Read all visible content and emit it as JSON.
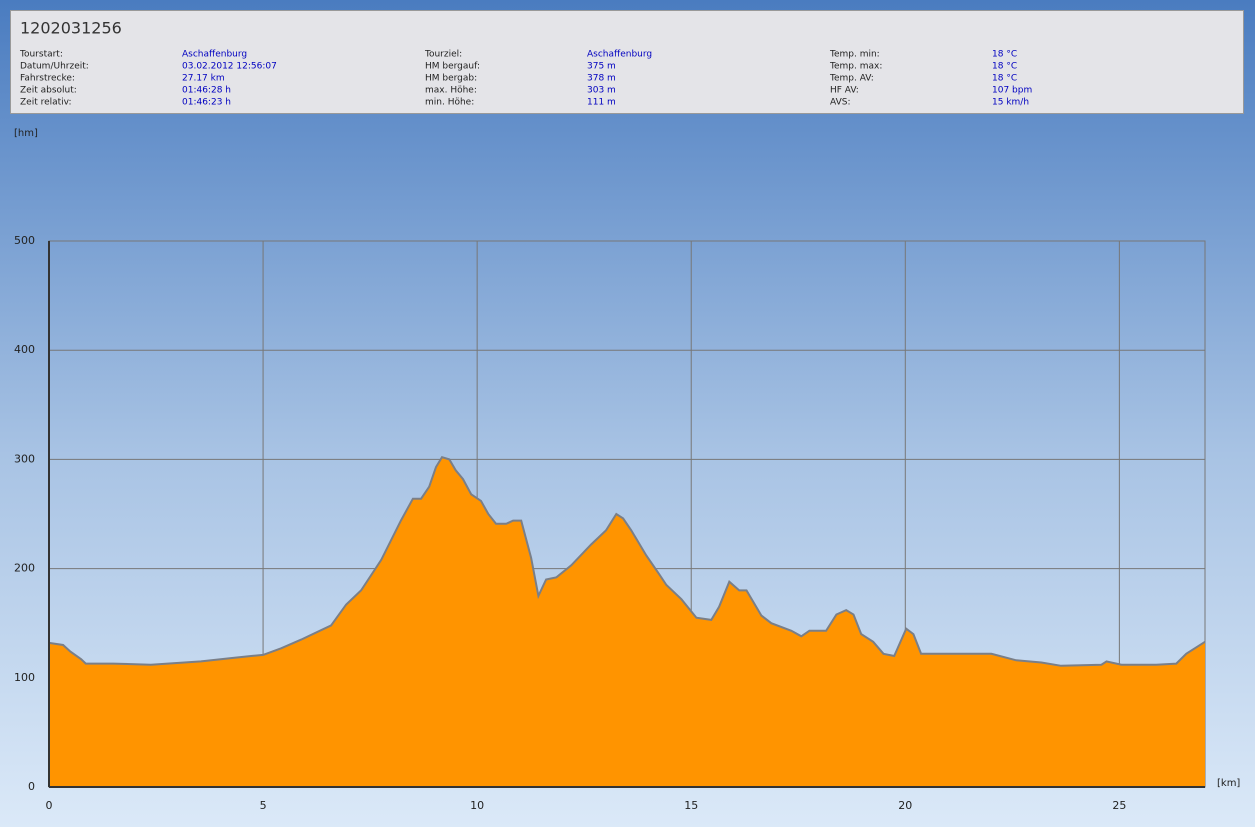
{
  "header": {
    "title": "1202031256",
    "columns": [
      [
        [
          "Tourstart:",
          "Aschaffenburg"
        ],
        [
          "Datum/Uhrzeit:",
          "03.02.2012 12:56:07"
        ],
        [
          "Fahrstrecke:",
          "27.17 km"
        ],
        [
          "Zeit absolut:",
          "01:46:28 h"
        ],
        [
          "Zeit relativ:",
          "01:46:23 h"
        ]
      ],
      [
        [
          "Tourziel:",
          "Aschaffenburg"
        ],
        [
          "HM bergauf:",
          "375 m"
        ],
        [
          "HM bergab:",
          "378 m"
        ],
        [
          "max. Höhe:",
          "303 m"
        ],
        [
          "min. Höhe:",
          "111 m"
        ]
      ],
      [
        [
          "Temp. min:",
          "18 °C"
        ],
        [
          "Temp. max:",
          "18 °C"
        ],
        [
          "Temp. AV:",
          "18 °C"
        ],
        [
          "HF AV:",
          "107 bpm"
        ],
        [
          "AVS:",
          "15 km/h"
        ]
      ]
    ]
  },
  "chart_data": {
    "type": "area",
    "y_label": "[hm]",
    "x_label": "[km]",
    "x": [
      0,
      0.33,
      0.5,
      0.75,
      0.86,
      1.5,
      2.38,
      3.55,
      4.25,
      4.72,
      5.0,
      5.42,
      5.89,
      6.59,
      6.94,
      7.29,
      7.76,
      8.22,
      8.5,
      8.69,
      8.88,
      9.04,
      9.18,
      9.35,
      9.5,
      9.67,
      9.86,
      10.09,
      10.26,
      10.44,
      10.68,
      10.84,
      11.03,
      11.26,
      11.43,
      11.61,
      11.85,
      12.2,
      12.66,
      13.01,
      13.25,
      13.41,
      13.6,
      13.95,
      14.25,
      14.42,
      14.77,
      15.12,
      15.47,
      15.65,
      15.89,
      16.12,
      16.29,
      16.64,
      16.87,
      17.34,
      17.57,
      17.76,
      18.15,
      18.39,
      18.62,
      18.79,
      18.97,
      19.25,
      19.49,
      19.74,
      20.02,
      20.19,
      20.37,
      20.72,
      21.31,
      22.01,
      22.59,
      23.18,
      23.64,
      24.58,
      24.7,
      25.05,
      25.86,
      26.33,
      26.56,
      27.0
    ],
    "values": [
      132,
      130,
      124,
      117,
      113,
      113,
      112,
      115,
      118,
      120,
      121,
      127,
      135,
      148,
      167,
      180,
      208,
      244,
      264,
      264,
      275,
      293,
      302,
      300,
      290,
      282,
      268,
      262,
      250,
      241,
      241,
      244,
      244,
      210,
      175,
      190,
      192,
      203,
      222,
      235,
      250,
      246,
      235,
      212,
      195,
      185,
      172,
      155,
      153,
      165,
      188,
      180,
      180,
      157,
      150,
      143,
      138,
      143,
      143,
      158,
      162,
      158,
      140,
      133,
      122,
      120,
      145,
      140,
      122,
      122,
      122,
      122,
      116,
      114,
      111,
      112,
      115,
      112,
      112,
      113,
      122,
      133
    ],
    "xlim": [
      0,
      27
    ],
    "ylim": [
      0,
      500
    ],
    "xticks": [
      0,
      5,
      10,
      15,
      20,
      25
    ],
    "yticks": [
      0,
      100,
      200,
      300,
      400,
      500
    ],
    "grid": true,
    "line_color": "#7a7f88"
  }
}
